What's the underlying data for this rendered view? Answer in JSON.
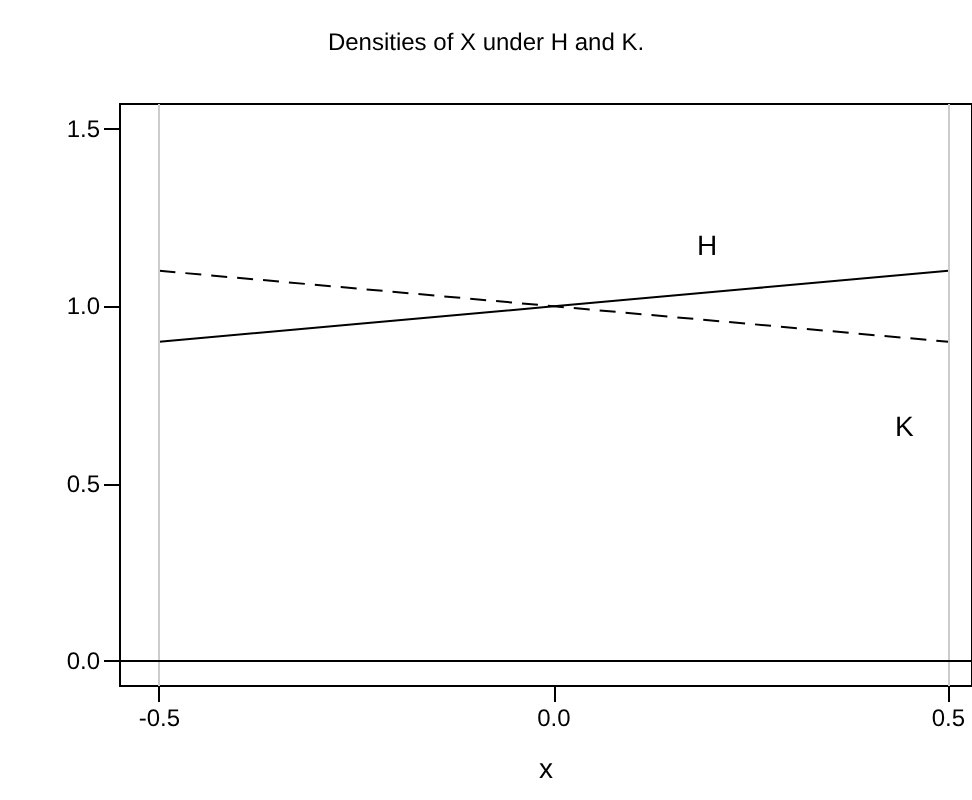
{
  "chart_data": {
    "type": "line",
    "title": "Densities of X under H and K.",
    "xlabel": "x",
    "x": [
      -0.5,
      -0.25,
      0,
      0.25,
      0.5
    ],
    "series": [
      {
        "name": "H",
        "color": "#000000",
        "line_style": "solid",
        "values": [
          0.9,
          0.95,
          1.0,
          1.05,
          1.1
        ]
      },
      {
        "name": "K",
        "color": "#000000",
        "line_style": "dashed",
        "values": [
          1.1,
          1.05,
          1.0,
          0.95,
          0.9
        ]
      }
    ],
    "xlim": [
      -0.55,
      0.53
    ],
    "ylim": [
      -0.07,
      1.57
    ],
    "xticks": [
      -0.5,
      {
        "value": 0,
        "label": "0.0"
      },
      0.5
    ],
    "yticks": [
      {
        "value": 0,
        "label": "0.0"
      },
      {
        "value": 0.5,
        "label": "0.5"
      },
      {
        "value": 1,
        "label": "1.0"
      },
      {
        "value": 1.5,
        "label": "1.5"
      }
    ],
    "ref_lines": [
      {
        "axis": "x",
        "value": -0.5,
        "color": "#cccccc"
      },
      {
        "axis": "x",
        "value": 0.5,
        "color": "#cccccc"
      },
      {
        "axis": "y",
        "value": 0,
        "color": "#000000"
      }
    ],
    "grid": false,
    "legend": false,
    "marker": "none"
  }
}
